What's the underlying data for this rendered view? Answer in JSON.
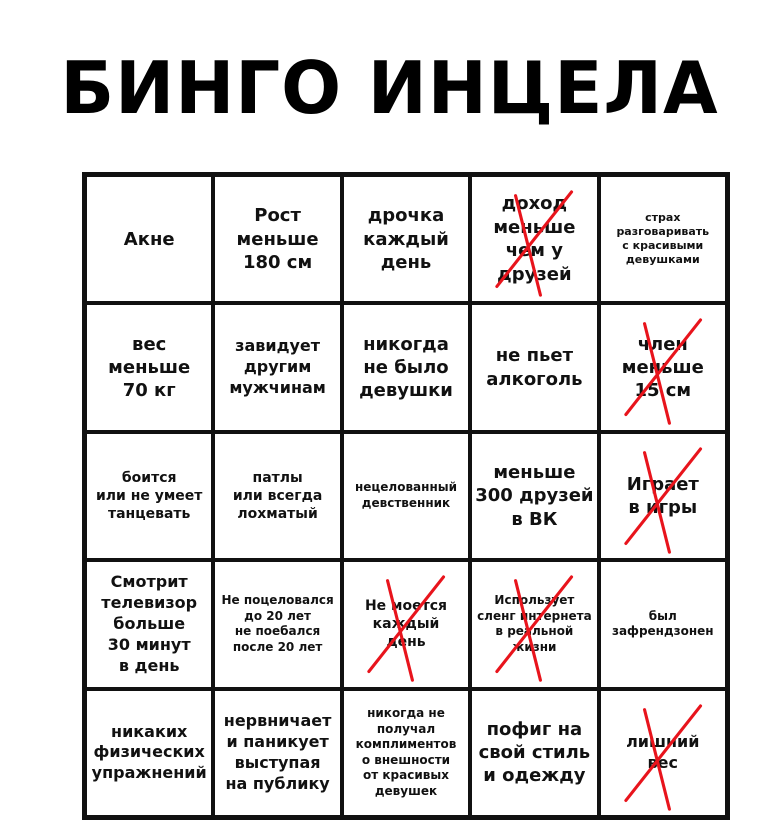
{
  "title": "БИНГО ИНЦЕЛА",
  "mark_color": "#e8141c",
  "cells": [
    {
      "text": "Акне",
      "crossed": false
    },
    {
      "text": "Рост\nменьше\n180 см",
      "crossed": false
    },
    {
      "text": "дрочка\nкаждый\nдень",
      "crossed": false
    },
    {
      "text": "доход\nменьше\nчем у\nдрузей",
      "crossed": true
    },
    {
      "text": "страх\nразговаривать\nс красивыми\nдевушками",
      "crossed": false
    },
    {
      "text": "вес\nменьше\n70 кг",
      "crossed": false
    },
    {
      "text": "завидует\nдругим\nмужчинам",
      "crossed": false
    },
    {
      "text": "никогда\nне было\nдевушки",
      "crossed": false
    },
    {
      "text": "не пьет\nалкоголь",
      "crossed": false
    },
    {
      "text": "член\nменьше\n15 см",
      "crossed": true
    },
    {
      "text": "боится\nили не умеет\nтанцевать",
      "crossed": false
    },
    {
      "text": "патлы\nили всегда\nлохматый",
      "crossed": false
    },
    {
      "text": "нецелованный\nдевственник",
      "crossed": false
    },
    {
      "text": "меньше\n300 друзей\nв ВК",
      "crossed": false
    },
    {
      "text": "Играет\nв игры",
      "crossed": true
    },
    {
      "text": "Смотрит\nтелевизор\nбольше\n30 минут\nв день",
      "crossed": false
    },
    {
      "text": "Не поцеловался\nдо 20 лет\nне поебался\nпосле 20 лет",
      "crossed": false
    },
    {
      "text": "Не моется\nкаждый\nдень",
      "crossed": true
    },
    {
      "text": "Использует\nсленг интернета\nв реальной\nжизни",
      "crossed": true
    },
    {
      "text": "был\nзафрендзонен",
      "crossed": false
    },
    {
      "text": "никаких\nфизических\nупражнений",
      "crossed": false
    },
    {
      "text": "нервничает\nи паникует\nвыступая\nна публику",
      "crossed": false
    },
    {
      "text": "никогда не\nполучал\nкомплиментов\nо внешности\nот красивых\nдевушек",
      "crossed": false
    },
    {
      "text": "пофиг на\nсвой стиль\nи одежду",
      "crossed": false
    },
    {
      "text": "лишний\nвес",
      "crossed": true
    }
  ]
}
